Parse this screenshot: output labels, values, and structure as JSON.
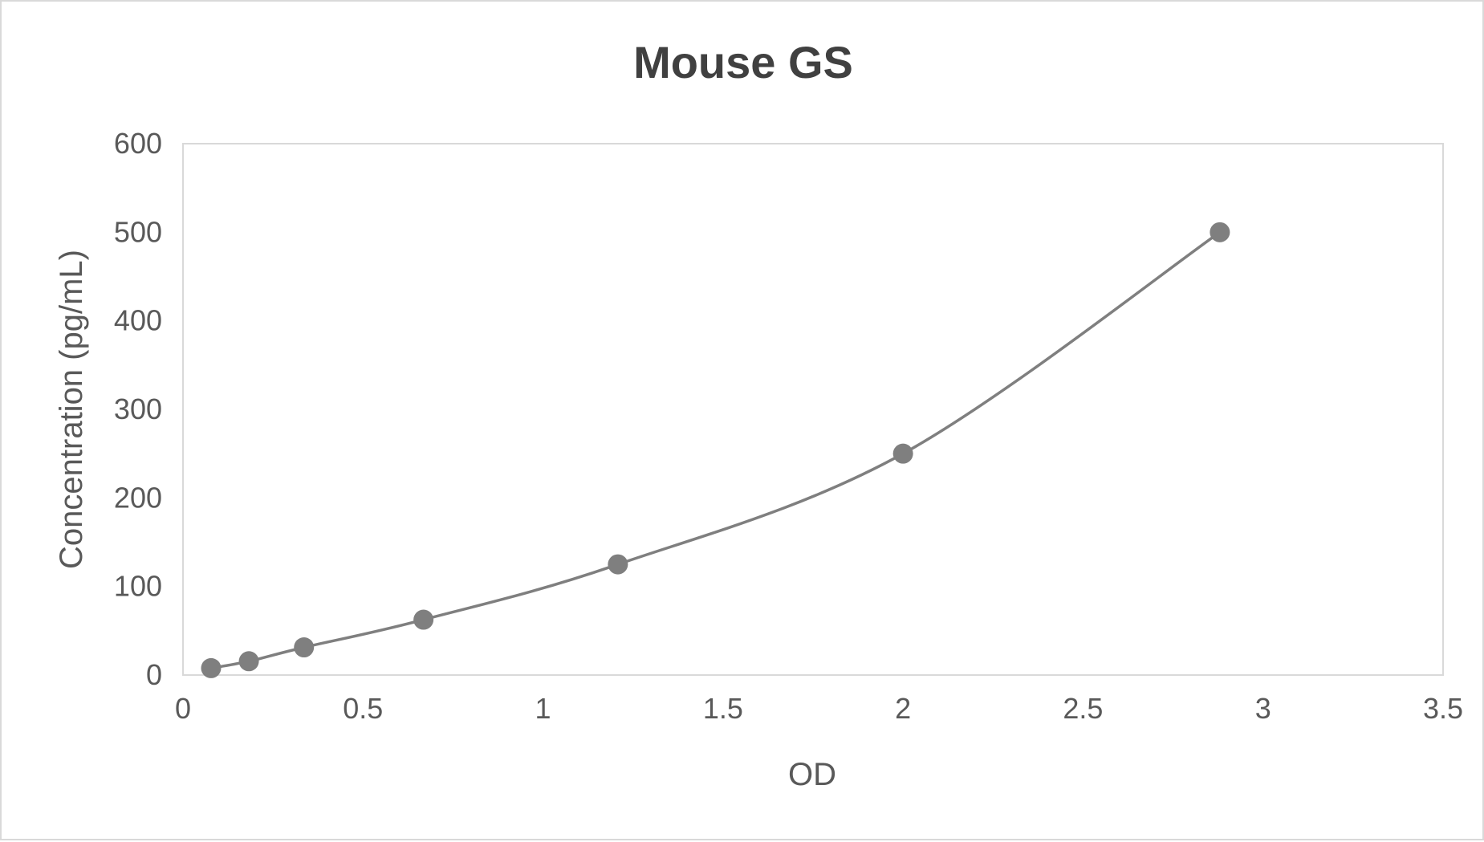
{
  "chart_data": {
    "type": "scatter",
    "title": "Mouse GS",
    "xlabel": "OD",
    "ylabel": "Concentration (pg/mL)",
    "xlim": [
      0,
      3.5
    ],
    "ylim": [
      0,
      600
    ],
    "x_ticks": [
      "0",
      "0.5",
      "1",
      "1.5",
      "2",
      "2.5",
      "3",
      "3.5"
    ],
    "y_ticks": [
      "0",
      "100",
      "200",
      "300",
      "400",
      "500",
      "600"
    ],
    "grid": false,
    "legend": "none",
    "smooth_line": true,
    "series": [
      {
        "x": [
          0.078,
          0.183,
          0.336,
          0.668,
          1.208,
          2.0,
          2.88
        ],
        "y": [
          7.8,
          15.6,
          31.25,
          62.5,
          125,
          250,
          500
        ]
      }
    ],
    "colors": {
      "marker": "#7f7f7f",
      "line": "#7f7f7f",
      "plot_border": "#d9d9d9"
    }
  }
}
